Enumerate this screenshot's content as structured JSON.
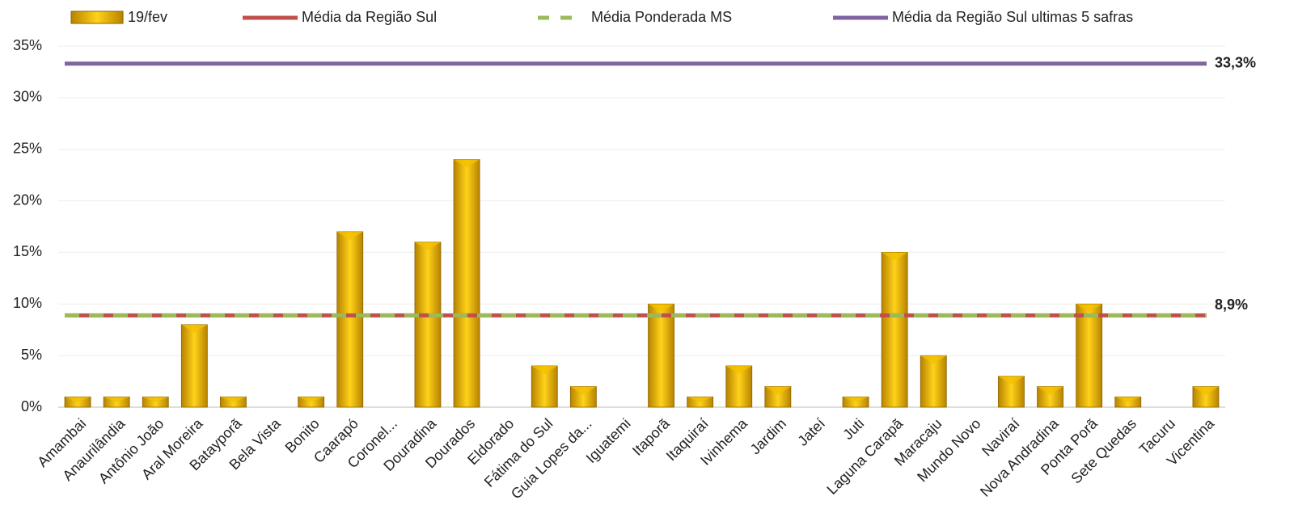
{
  "chart_data": {
    "type": "bar",
    "categories": [
      "Amambai",
      "Anaurilândia",
      "Antônio João",
      "Aral Moreira",
      "Batayporã",
      "Bela Vista",
      "Bonito",
      "Caarapó",
      "Coronel...",
      "Douradina",
      "Dourados",
      "Eldorado",
      "Fátima do Sul",
      "Guia Lopes da...",
      "Iguatemi",
      "Itaporã",
      "Itaquiraí",
      "Ivinhema",
      "Jardim",
      "Jateí",
      "Juti",
      "Laguna Carapã",
      "Maracaju",
      "Mundo Novo",
      "Naviraí",
      "Nova Andradina",
      "Ponta Porã",
      "Sete Quedas",
      "Tacuru",
      "Vicentina"
    ],
    "series": [
      {
        "name": "19/fev",
        "color": "#f5c000",
        "values": [
          1,
          1,
          1,
          8,
          1,
          0,
          1,
          17,
          0,
          16,
          24,
          0,
          4,
          2,
          0,
          10,
          1,
          4,
          2,
          0,
          1,
          15,
          5,
          0,
          3,
          2,
          10,
          1,
          0,
          2
        ]
      }
    ],
    "reference_lines": [
      {
        "name": "Média da Região Sul",
        "color": "#c0504d",
        "value": 8.9,
        "value_label": "8,9%",
        "dashed": false
      },
      {
        "name": "Média Ponderada MS",
        "color": "#9bbb59",
        "value": 8.9,
        "dashed": true
      },
      {
        "name": "Média da Região Sul ultimas 5 safras",
        "color": "#8064a2",
        "value": 33.3,
        "value_label": "33,3%",
        "dashed": false
      }
    ],
    "ylim": [
      0,
      35
    ],
    "yticks": [
      {
        "value": 0,
        "label": "0%"
      },
      {
        "value": 5,
        "label": "5%"
      },
      {
        "value": 10,
        "label": "10%"
      },
      {
        "value": 15,
        "label": "15%"
      },
      {
        "value": 20,
        "label": "20%"
      },
      {
        "value": 25,
        "label": "25%"
      },
      {
        "value": 30,
        "label": "30%"
      },
      {
        "value": 35,
        "label": "35%"
      }
    ],
    "grid": true
  }
}
